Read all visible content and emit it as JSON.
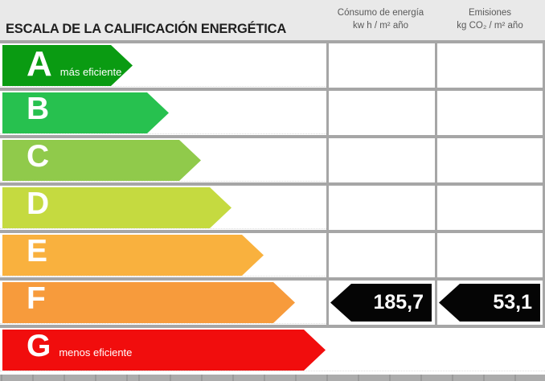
{
  "header": {
    "title": "ESCALA DE LA CALIFICACIÓN ENERGÉTICA",
    "columns": [
      {
        "line1": "Cónsumo de energía",
        "line2": "kw h / m² año"
      },
      {
        "line1": "Emisiones",
        "line2": "kg CO₂ / m² año"
      }
    ]
  },
  "scale": {
    "rows": [
      {
        "letter": "A",
        "label": "más eficiente",
        "color": "#0A9B12",
        "arrow_width": 162
      },
      {
        "letter": "B",
        "label": "",
        "color": "#27C14F",
        "arrow_width": 207
      },
      {
        "letter": "C",
        "label": "",
        "color": "#90CA4B",
        "arrow_width": 247
      },
      {
        "letter": "D",
        "label": "",
        "color": "#C5DA40",
        "arrow_width": 285
      },
      {
        "letter": "E",
        "label": "",
        "color": "#F9B13E",
        "arrow_width": 325
      },
      {
        "letter": "F",
        "label": "",
        "color": "#F79B3C",
        "arrow_width": 364
      },
      {
        "letter": "G",
        "label": "menos eficiente",
        "color": "#F10D0D",
        "arrow_width": 402
      }
    ]
  },
  "rating": {
    "letter": "F",
    "consumption_value": "185,7",
    "emissions_value": "53,1",
    "arrow_color": "#050505"
  },
  "chart_data": {
    "type": "bar",
    "title": "ESCALA DE LA CALIFICACIÓN ENERGÉTICA",
    "categories": [
      "A",
      "B",
      "C",
      "D",
      "E",
      "F",
      "G"
    ],
    "values": [
      162,
      207,
      247,
      285,
      325,
      364,
      402
    ],
    "category_labels": [
      "más eficiente",
      "",
      "",
      "",
      "",
      "",
      "menos eficiente"
    ],
    "colors": [
      "#0A9B12",
      "#27C14F",
      "#90CA4B",
      "#C5DA40",
      "#F9B13E",
      "#F79B3C",
      "#F10D0D"
    ],
    "annotations": [
      {
        "row": "F",
        "column": "Cónsumo de energía kw h / m² año",
        "value": 185.7
      },
      {
        "row": "F",
        "column": "Emisiones kg CO₂ / m² año",
        "value": 53.1
      }
    ],
    "legend_position": "none",
    "grid": false
  }
}
